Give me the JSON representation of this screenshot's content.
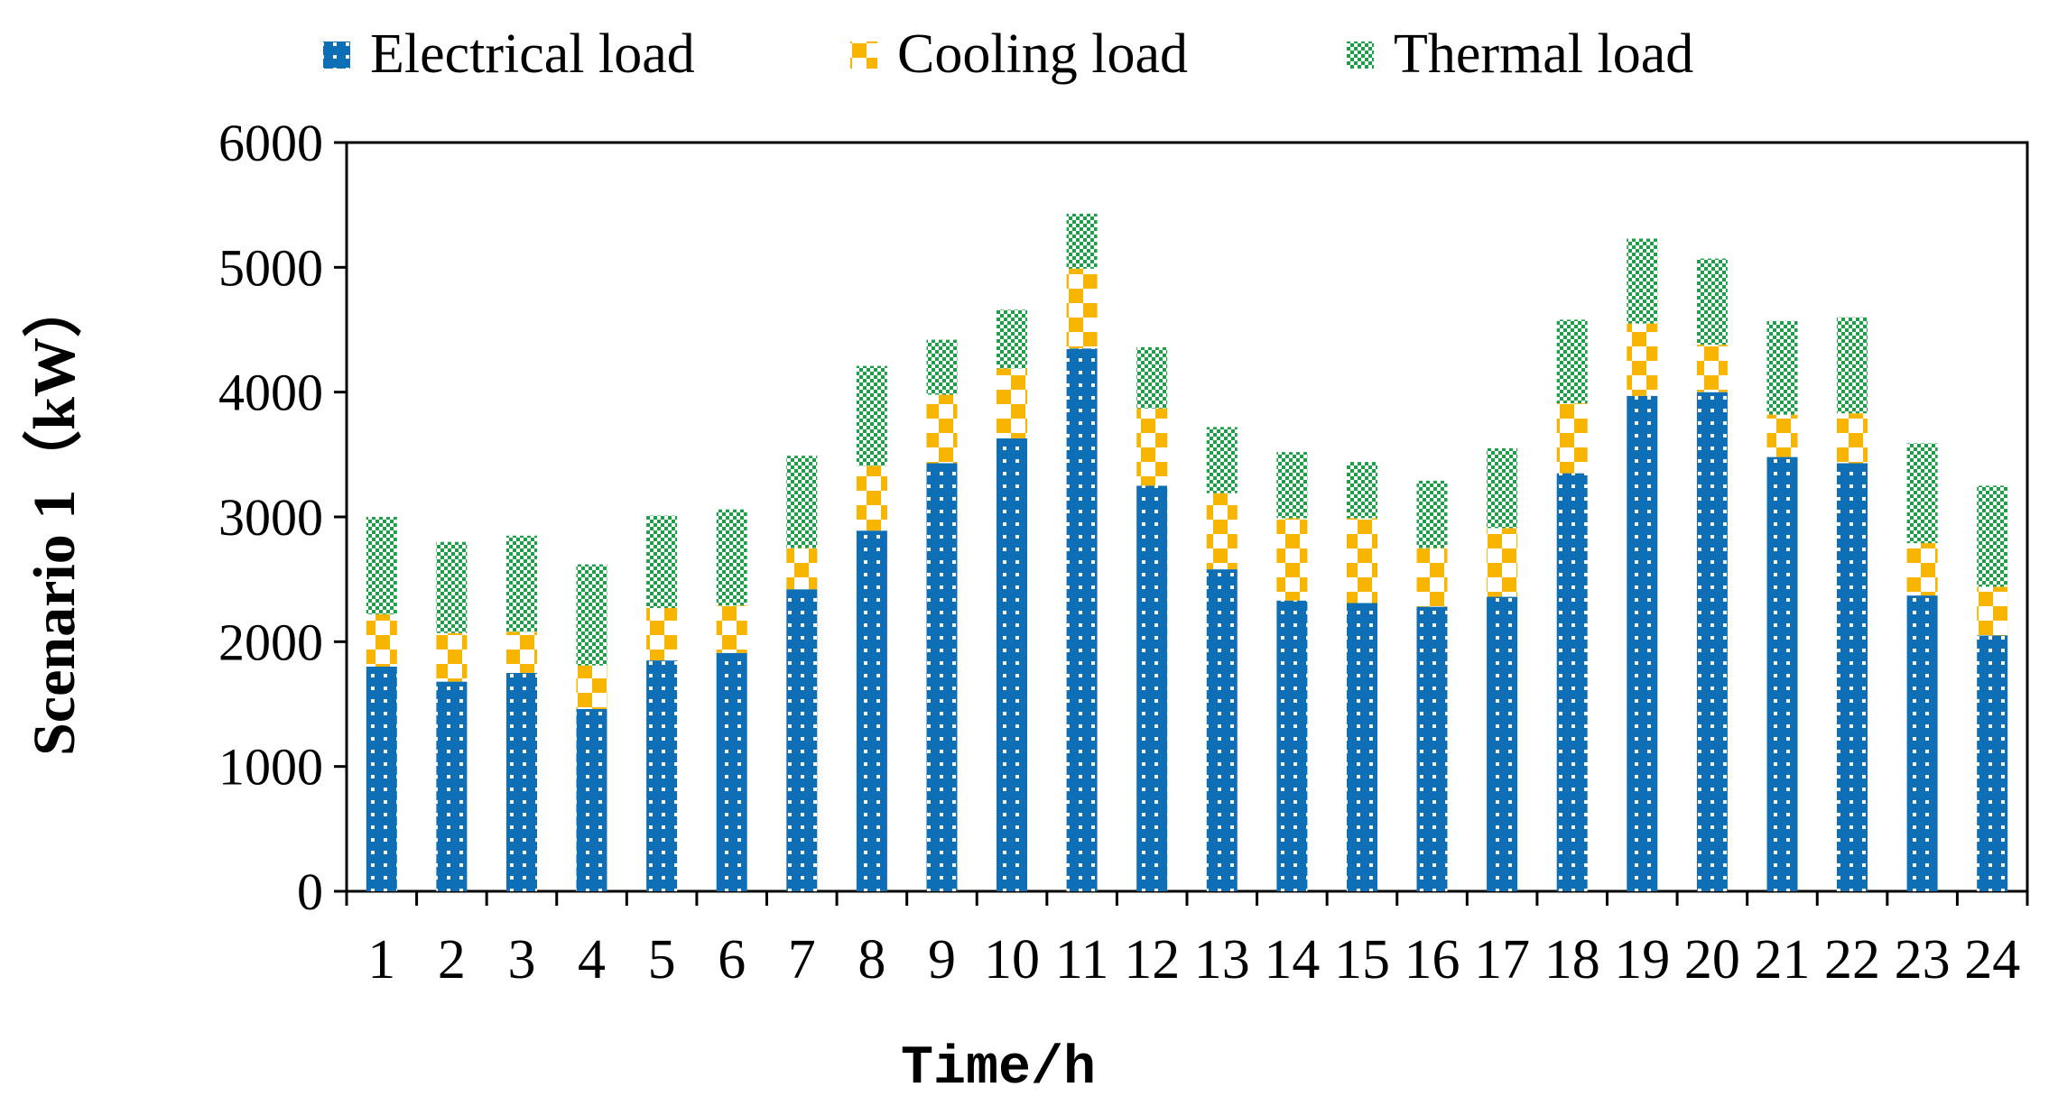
{
  "chart_data": {
    "type": "bar",
    "stacked": true,
    "title": "",
    "xlabel": "Time/h",
    "ylabel": "Scenario 1（kW）",
    "ylim": [
      0,
      6000
    ],
    "yticks": [
      0,
      1000,
      2000,
      3000,
      4000,
      5000,
      6000
    ],
    "categories": [
      "1",
      "2",
      "3",
      "4",
      "5",
      "6",
      "7",
      "8",
      "9",
      "10",
      "11",
      "12",
      "13",
      "14",
      "15",
      "16",
      "17",
      "18",
      "19",
      "20",
      "21",
      "22",
      "23",
      "24"
    ],
    "series": [
      {
        "name": "Electrical load",
        "color": "#0f6fb6",
        "pattern": "dots",
        "values": [
          1800,
          1680,
          1750,
          1460,
          1850,
          1910,
          2420,
          2890,
          3430,
          3630,
          4350,
          3250,
          2580,
          2330,
          2310,
          2280,
          2360,
          3350,
          3970,
          4000,
          3480,
          3430,
          2370,
          2050
        ]
      },
      {
        "name": "Cooling load",
        "color": "#f7b500",
        "pattern": "checker",
        "values": [
          420,
          390,
          330,
          350,
          420,
          380,
          330,
          520,
          550,
          560,
          640,
          620,
          610,
          660,
          680,
          470,
          550,
          560,
          580,
          380,
          340,
          400,
          420,
          390
        ]
      },
      {
        "name": "Thermal load",
        "color": "#1f9e4a",
        "pattern": "small-checker",
        "values": [
          780,
          730,
          770,
          810,
          740,
          770,
          740,
          800,
          440,
          470,
          440,
          490,
          530,
          530,
          450,
          540,
          640,
          670,
          680,
          690,
          750,
          770,
          800,
          810
        ]
      }
    ],
    "legend_position": "top",
    "grid": false
  }
}
